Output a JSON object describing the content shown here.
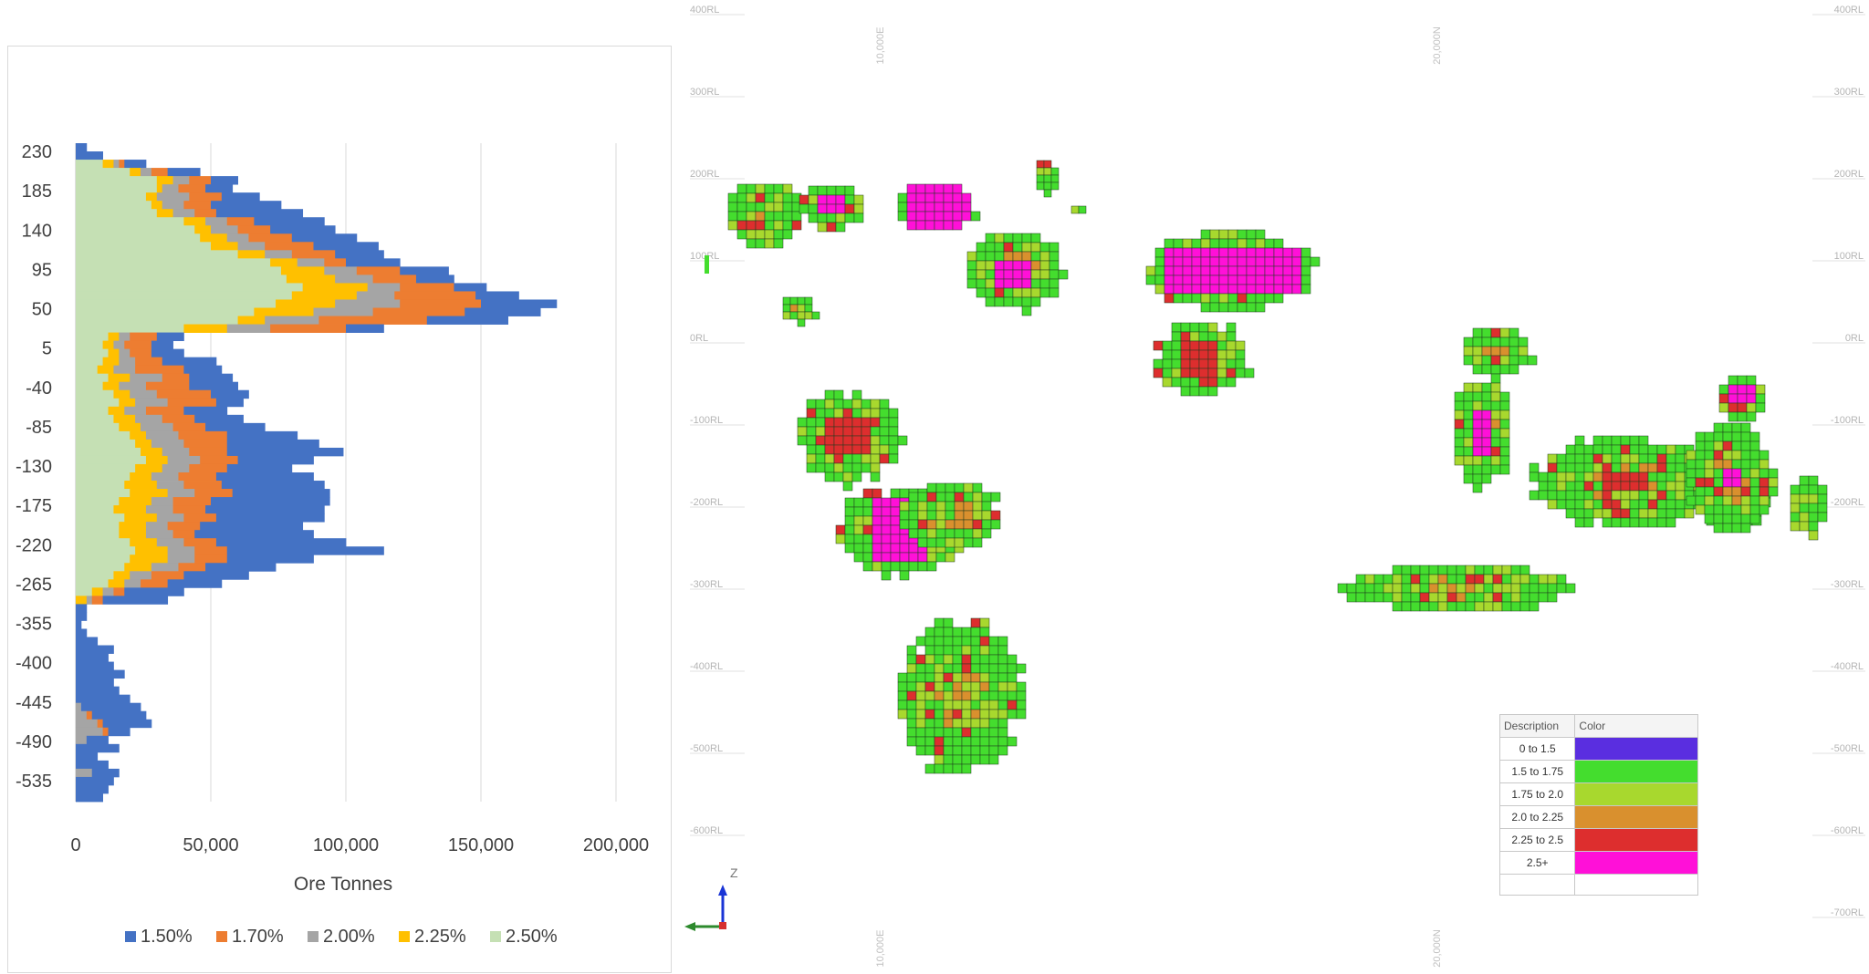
{
  "chart_data": {
    "type": "bar",
    "orientation": "horizontal",
    "stacked": true,
    "xlabel": "Ore Tonnes",
    "ylabel": "",
    "xlim": [
      0,
      200000
    ],
    "x_ticks": [
      "0",
      "50,000",
      "100,000",
      "150,000",
      "200,000"
    ],
    "y_tick_labels": [
      "230",
      "185",
      "140",
      "95",
      "50",
      "5",
      "-40",
      "-85",
      "-130",
      "-175",
      "-220",
      "-265",
      "-355",
      "-400",
      "-445",
      "-490",
      "-535"
    ],
    "legend_position": "bottom",
    "grid": "vertical",
    "series": [
      {
        "name": "2.50%",
        "color": "#c5e0b4"
      },
      {
        "name": "2.25%",
        "color": "#ffc000"
      },
      {
        "name": "2.00%",
        "color": "#a5a5a5"
      },
      {
        "name": "1.70%",
        "color": "#ed7d31"
      },
      {
        "name": "1.50%",
        "color": "#4472c4"
      }
    ],
    "legend_order": [
      "1.50%",
      "1.70%",
      "2.00%",
      "2.25%",
      "2.50%"
    ],
    "rows_cumulative": [
      [
        0,
        0,
        0,
        0,
        4000
      ],
      [
        0,
        0,
        0,
        0,
        10000
      ],
      [
        10000,
        14000,
        16000,
        18000,
        26000
      ],
      [
        20000,
        24000,
        28000,
        34000,
        46000
      ],
      [
        30000,
        36000,
        42000,
        50000,
        60000
      ],
      [
        30000,
        32000,
        38000,
        48000,
        58000
      ],
      [
        26000,
        30000,
        42000,
        54000,
        68000
      ],
      [
        28000,
        32000,
        40000,
        50000,
        76000
      ],
      [
        30000,
        36000,
        44000,
        52000,
        84000
      ],
      [
        40000,
        48000,
        56000,
        66000,
        92000
      ],
      [
        44000,
        50000,
        60000,
        72000,
        96000
      ],
      [
        46000,
        56000,
        64000,
        80000,
        104000
      ],
      [
        50000,
        60000,
        70000,
        88000,
        112000
      ],
      [
        60000,
        70000,
        80000,
        96000,
        114000
      ],
      [
        72000,
        82000,
        92000,
        100000,
        120000
      ],
      [
        76000,
        92000,
        104000,
        120000,
        138000
      ],
      [
        78000,
        96000,
        110000,
        126000,
        140000
      ],
      [
        84000,
        108000,
        120000,
        140000,
        152000
      ],
      [
        80000,
        104000,
        118000,
        148000,
        164000
      ],
      [
        74000,
        96000,
        120000,
        150000,
        178000
      ],
      [
        66000,
        88000,
        110000,
        144000,
        172000
      ],
      [
        60000,
        70000,
        90000,
        130000,
        160000
      ],
      [
        40000,
        56000,
        72000,
        100000,
        114000
      ],
      [
        12000,
        16000,
        20000,
        30000,
        40000
      ],
      [
        10000,
        14000,
        18000,
        28000,
        36000
      ],
      [
        12000,
        16000,
        20000,
        28000,
        40000
      ],
      [
        10000,
        16000,
        22000,
        32000,
        52000
      ],
      [
        8000,
        14000,
        22000,
        40000,
        54000
      ],
      [
        12000,
        20000,
        32000,
        42000,
        58000
      ],
      [
        10000,
        16000,
        26000,
        42000,
        60000
      ],
      [
        14000,
        20000,
        30000,
        50000,
        64000
      ],
      [
        16000,
        22000,
        34000,
        52000,
        62000
      ],
      [
        12000,
        18000,
        26000,
        40000,
        56000
      ],
      [
        14000,
        22000,
        32000,
        44000,
        62000
      ],
      [
        16000,
        24000,
        36000,
        48000,
        70000
      ],
      [
        20000,
        26000,
        38000,
        56000,
        82000
      ],
      [
        22000,
        28000,
        40000,
        56000,
        90000
      ],
      [
        24000,
        32000,
        42000,
        56000,
        99000
      ],
      [
        26000,
        34000,
        46000,
        60000,
        88000
      ],
      [
        22000,
        32000,
        42000,
        56000,
        80000
      ],
      [
        20000,
        28000,
        38000,
        52000,
        88000
      ],
      [
        18000,
        30000,
        40000,
        54000,
        92000
      ],
      [
        20000,
        34000,
        44000,
        58000,
        94000
      ],
      [
        16000,
        28000,
        36000,
        50000,
        94000
      ],
      [
        14000,
        26000,
        36000,
        48000,
        92000
      ],
      [
        18000,
        30000,
        40000,
        52000,
        92000
      ],
      [
        16000,
        26000,
        34000,
        46000,
        84000
      ],
      [
        16000,
        26000,
        36000,
        44000,
        88000
      ],
      [
        20000,
        30000,
        40000,
        52000,
        100000
      ],
      [
        22000,
        34000,
        44000,
        56000,
        114000
      ],
      [
        20000,
        34000,
        44000,
        56000,
        88000
      ],
      [
        18000,
        28000,
        38000,
        48000,
        74000
      ],
      [
        14000,
        20000,
        28000,
        40000,
        64000
      ],
      [
        12000,
        18000,
        24000,
        34000,
        54000
      ],
      [
        6000,
        10000,
        14000,
        18000,
        40000
      ],
      [
        0,
        4000,
        6000,
        10000,
        34000
      ],
      [
        0,
        0,
        0,
        0,
        4000
      ],
      [
        0,
        0,
        0,
        0,
        4000
      ],
      [
        0,
        0,
        0,
        0,
        2000
      ],
      [
        0,
        0,
        0,
        0,
        4000
      ],
      [
        0,
        0,
        0,
        0,
        8000
      ],
      [
        0,
        0,
        0,
        0,
        14000
      ],
      [
        0,
        0,
        0,
        0,
        12000
      ],
      [
        0,
        0,
        0,
        0,
        14000
      ],
      [
        0,
        0,
        0,
        0,
        18000
      ],
      [
        0,
        0,
        0,
        0,
        14000
      ],
      [
        0,
        0,
        0,
        0,
        16000
      ],
      [
        0,
        0,
        0,
        0,
        20000
      ],
      [
        0,
        0,
        2000,
        2000,
        24000
      ],
      [
        0,
        0,
        4000,
        6000,
        26000
      ],
      [
        0,
        0,
        8000,
        10000,
        28000
      ],
      [
        0,
        0,
        10000,
        12000,
        20000
      ],
      [
        0,
        0,
        4000,
        4000,
        12000
      ],
      [
        0,
        0,
        0,
        0,
        16000
      ],
      [
        0,
        0,
        0,
        0,
        8000
      ],
      [
        0,
        0,
        0,
        0,
        12000
      ],
      [
        0,
        0,
        6000,
        6000,
        16000
      ],
      [
        0,
        0,
        0,
        0,
        14000
      ],
      [
        0,
        0,
        0,
        0,
        12000
      ],
      [
        0,
        0,
        0,
        0,
        10000
      ]
    ]
  },
  "section_view": {
    "rl_labels": [
      "400RL",
      "300RL",
      "200RL",
      "100RL",
      "0RL",
      "-100RL",
      "-200RL",
      "-300RL",
      "-400RL",
      "-500RL",
      "-600RL",
      "-700RL"
    ],
    "northing_labels": [
      "10,000E",
      "20,000N"
    ],
    "axis_label_z": "Z",
    "legend_headers": {
      "description": "Description",
      "color": "Color"
    },
    "legend": [
      {
        "label": "0 to 1.5",
        "color": "#5a2ee0"
      },
      {
        "label": "1.5 to 1.75",
        "color": "#44dd2e"
      },
      {
        "label": "1.75 to 2.0",
        "color": "#a8d82e"
      },
      {
        "label": "2.0 to 2.25",
        "color": "#d9902e"
      },
      {
        "label": "2.25 to 2.5",
        "color": "#dd2e2e"
      },
      {
        "label": "2.5+",
        "color": "#ff10d8"
      }
    ]
  }
}
